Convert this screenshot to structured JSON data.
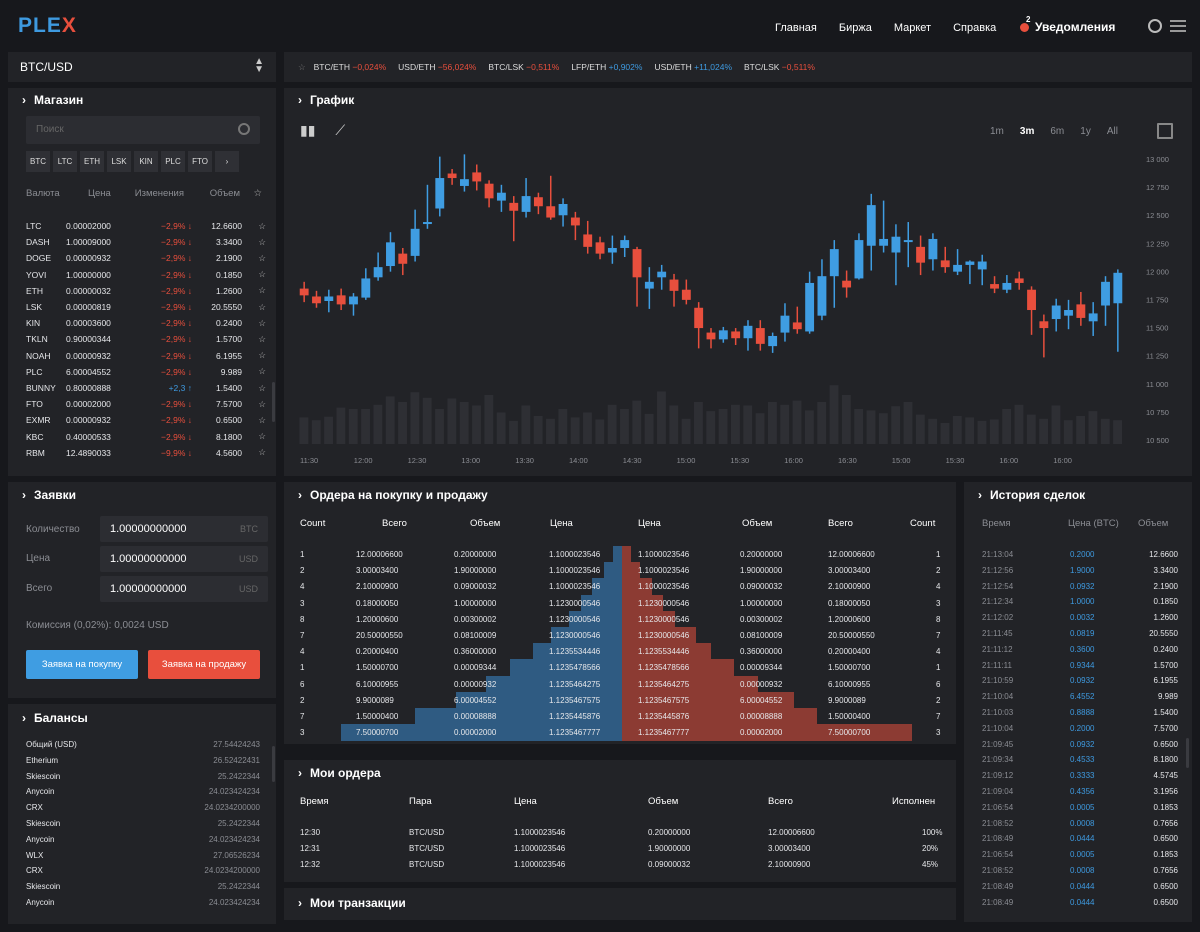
{
  "header": {
    "logo_part1": "PLE",
    "logo_part2": "X",
    "nav": [
      "Главная",
      "Биржа",
      "Маркет",
      "Справка"
    ],
    "notif_count": "2",
    "notif_label": "Уведомления"
  },
  "pair": {
    "value": "BTC/USD"
  },
  "ticker": [
    {
      "pair": "BTC/ETH",
      "change": "−0,024%",
      "dir": "neg"
    },
    {
      "pair": "USD/ETH",
      "change": "−56,024%",
      "dir": "neg"
    },
    {
      "pair": "BTC/LSK",
      "change": "−0,511%",
      "dir": "neg"
    },
    {
      "pair": "LFP/ETH",
      "change": "+0,902%",
      "dir": "pos"
    },
    {
      "pair": "USD/ETH",
      "change": "+11,024%",
      "dir": "pos"
    },
    {
      "pair": "BTC/LSK",
      "change": "−0,511%",
      "dir": "neg"
    }
  ],
  "store": {
    "title": "Магазин",
    "search_placeholder": "Поиск",
    "coins": [
      "BTC",
      "LTC",
      "ETH",
      "LSK",
      "KIN",
      "PLC",
      "FTO",
      "›"
    ],
    "headers": [
      "Валюта",
      "Цена",
      "Изменения",
      "Объем",
      "☆"
    ],
    "rows": [
      {
        "c": "LTC",
        "p": "0.00002000",
        "ch": "−2,9% ↓",
        "d": "neg",
        "v": "12.6600",
        "s": "☆"
      },
      {
        "c": "DASH",
        "p": "1.00009000",
        "ch": "−2,9% ↓",
        "d": "neg",
        "v": "3.3400",
        "s": "☆"
      },
      {
        "c": "DOGE",
        "p": "0.00000932",
        "ch": "−2,9% ↓",
        "d": "neg",
        "v": "2.1900",
        "s": "☆"
      },
      {
        "c": "YOVI",
        "p": "1.00000000",
        "ch": "−2,9% ↓",
        "d": "neg",
        "v": "0.1850",
        "s": "☆"
      },
      {
        "c": "ETH",
        "p": "0.00000032",
        "ch": "−2,9% ↓",
        "d": "neg",
        "v": "1.2600",
        "s": "☆"
      },
      {
        "c": "LSK",
        "p": "0.00000819",
        "ch": "−2,9% ↓",
        "d": "neg",
        "v": "20.5550",
        "s": "☆"
      },
      {
        "c": "KIN",
        "p": "0.00003600",
        "ch": "−2,9% ↓",
        "d": "neg",
        "v": "0.2400",
        "s": "☆"
      },
      {
        "c": "TKLN",
        "p": "0.90000344",
        "ch": "−2,9% ↓",
        "d": "neg",
        "v": "1.5700",
        "s": "☆"
      },
      {
        "c": "NOAH",
        "p": "0.00000932",
        "ch": "−2,9% ↓",
        "d": "neg",
        "v": "6.1955",
        "s": "☆"
      },
      {
        "c": "PLC",
        "p": "6.00004552",
        "ch": "−2,9% ↓",
        "d": "neg",
        "v": "9.989",
        "s": "☆"
      },
      {
        "c": "BUNNY",
        "p": "0.80000888",
        "ch": "+2,3 ↑",
        "d": "pos",
        "v": "1.5400",
        "s": "☆"
      },
      {
        "c": "FTO",
        "p": "0.00002000",
        "ch": "−2,9% ↓",
        "d": "neg",
        "v": "7.5700",
        "s": "☆"
      },
      {
        "c": "EXMR",
        "p": "0.00000932",
        "ch": "−2,9% ↓",
        "d": "neg",
        "v": "0.6500",
        "s": "☆"
      },
      {
        "c": "KBC",
        "p": "0.40000533",
        "ch": "−2,9% ↓",
        "d": "neg",
        "v": "8.1800",
        "s": "☆"
      },
      {
        "c": "RBM",
        "p": "12.4890033",
        "ch": "−9,9% ↓",
        "d": "neg",
        "v": "4.5600",
        "s": "☆"
      }
    ]
  },
  "bidform": {
    "title": "Заявки",
    "qty_label": "Количество",
    "qty_value": "1.00000000000",
    "qty_unit": "BTC",
    "price_label": "Цена",
    "price_value": "1.00000000000",
    "price_unit": "USD",
    "total_label": "Всего",
    "total_value": "1.00000000000",
    "total_unit": "USD",
    "fee": "Комиссия (0,02%): 0,0024 USD",
    "buy_label": "Заявка на покупку",
    "sell_label": "Заявка на продажу"
  },
  "balances": {
    "title": "Балансы",
    "rows": [
      {
        "n": "Общий (USD)",
        "v": "27.54424243"
      },
      {
        "n": "Etherium",
        "v": "26.52422431"
      },
      {
        "n": "Skiescoin",
        "v": "25.2422344"
      },
      {
        "n": "Anycoin",
        "v": "24.023424234"
      },
      {
        "n": "CRX",
        "v": "24.0234200000"
      },
      {
        "n": "Skiescoin",
        "v": "25.2422344"
      },
      {
        "n": "Anycoin",
        "v": "24.023424234"
      },
      {
        "n": "WLX",
        "v": "27.06526234"
      },
      {
        "n": "CRX",
        "v": "24.0234200000"
      },
      {
        "n": "Skiescoin",
        "v": "25.2422344"
      },
      {
        "n": "Anycoin",
        "v": "24.023424234"
      }
    ]
  },
  "chart": {
    "title": "График",
    "timeframes": [
      "1m",
      "3m",
      "6m",
      "1y",
      "All"
    ],
    "active_tf": "3m",
    "colors": {
      "up": "#3f9de2",
      "down": "#e84f3d",
      "volume": "#2e2f34"
    },
    "y_ticks": [
      "13 000",
      "12 750",
      "12 500",
      "12 250",
      "12 000",
      "11 750",
      "11 500",
      "11 250",
      "11 000",
      "10 750",
      "10 500"
    ],
    "x_ticks": [
      "11:30",
      "12:00",
      "12:30",
      "13:00",
      "13:30",
      "14:00",
      "14:30",
      "15:00",
      "15:30",
      "16:00",
      "16:30",
      "15:00",
      "15:30",
      "16:00",
      "16:00"
    ]
  },
  "chart_data": {
    "type": "candlestick",
    "ylim": [
      10500,
      13000
    ],
    "candles": [
      {
        "o": 11860,
        "c": 11800,
        "h": 11920,
        "l": 11740
      },
      {
        "o": 11790,
        "c": 11730,
        "h": 11840,
        "l": 11690
      },
      {
        "o": 11750,
        "c": 11790,
        "h": 11850,
        "l": 11650
      },
      {
        "o": 11800,
        "c": 11720,
        "h": 11860,
        "l": 11670
      },
      {
        "o": 11720,
        "c": 11790,
        "h": 11820,
        "l": 11620
      },
      {
        "o": 11780,
        "c": 11950,
        "h": 12040,
        "l": 11760
      },
      {
        "o": 11960,
        "c": 12050,
        "h": 12180,
        "l": 11930
      },
      {
        "o": 12060,
        "c": 12270,
        "h": 12360,
        "l": 12010
      },
      {
        "o": 12170,
        "c": 12080,
        "h": 12220,
        "l": 11980
      },
      {
        "o": 12150,
        "c": 12390,
        "h": 12560,
        "l": 12100
      },
      {
        "o": 12440,
        "c": 12450,
        "h": 12780,
        "l": 12390
      },
      {
        "o": 12570,
        "c": 12840,
        "h": 13030,
        "l": 12500
      },
      {
        "o": 12880,
        "c": 12840,
        "h": 12920,
        "l": 12780
      },
      {
        "o": 12770,
        "c": 12830,
        "h": 13050,
        "l": 12720
      },
      {
        "o": 12890,
        "c": 12810,
        "h": 12960,
        "l": 12730
      },
      {
        "o": 12790,
        "c": 12660,
        "h": 12820,
        "l": 12580
      },
      {
        "o": 12640,
        "c": 12710,
        "h": 12780,
        "l": 12540
      },
      {
        "o": 12620,
        "c": 12550,
        "h": 12680,
        "l": 12280
      },
      {
        "o": 12540,
        "c": 12680,
        "h": 12840,
        "l": 12490
      },
      {
        "o": 12670,
        "c": 12590,
        "h": 12710,
        "l": 12520
      },
      {
        "o": 12590,
        "c": 12490,
        "h": 12860,
        "l": 12470
      },
      {
        "o": 12510,
        "c": 12610,
        "h": 12660,
        "l": 12410
      },
      {
        "o": 12490,
        "c": 12420,
        "h": 12540,
        "l": 12290
      },
      {
        "o": 12340,
        "c": 12230,
        "h": 12460,
        "l": 12170
      },
      {
        "o": 12270,
        "c": 12170,
        "h": 12320,
        "l": 12120
      },
      {
        "o": 12180,
        "c": 12220,
        "h": 12330,
        "l": 12080
      },
      {
        "o": 12220,
        "c": 12290,
        "h": 12330,
        "l": 12140
      },
      {
        "o": 12210,
        "c": 11960,
        "h": 12230,
        "l": 11700
      },
      {
        "o": 11860,
        "c": 11920,
        "h": 12050,
        "l": 11680
      },
      {
        "o": 11960,
        "c": 12010,
        "h": 12070,
        "l": 11850
      },
      {
        "o": 11940,
        "c": 11840,
        "h": 11990,
        "l": 11700
      },
      {
        "o": 11850,
        "c": 11760,
        "h": 11940,
        "l": 11720
      },
      {
        "o": 11690,
        "c": 11510,
        "h": 11740,
        "l": 11330
      },
      {
        "o": 11470,
        "c": 11410,
        "h": 11510,
        "l": 11330
      },
      {
        "o": 11410,
        "c": 11490,
        "h": 11520,
        "l": 11380
      },
      {
        "o": 11480,
        "c": 11420,
        "h": 11510,
        "l": 11360
      },
      {
        "o": 11420,
        "c": 11530,
        "h": 11580,
        "l": 11310
      },
      {
        "o": 11510,
        "c": 11370,
        "h": 11580,
        "l": 11310
      },
      {
        "o": 11350,
        "c": 11440,
        "h": 11470,
        "l": 11290
      },
      {
        "o": 11470,
        "c": 11620,
        "h": 11730,
        "l": 11390
      },
      {
        "o": 11560,
        "c": 11500,
        "h": 11700,
        "l": 11460
      },
      {
        "o": 11480,
        "c": 11910,
        "h": 12010,
        "l": 11460
      },
      {
        "o": 11620,
        "c": 11970,
        "h": 12120,
        "l": 11580
      },
      {
        "o": 11970,
        "c": 12210,
        "h": 12290,
        "l": 11690
      },
      {
        "o": 11930,
        "c": 11870,
        "h": 12020,
        "l": 11780
      },
      {
        "o": 11950,
        "c": 12290,
        "h": 12350,
        "l": 11940
      },
      {
        "o": 12240,
        "c": 12600,
        "h": 12700,
        "l": 12020
      },
      {
        "o": 12240,
        "c": 12300,
        "h": 12640,
        "l": 12180
      },
      {
        "o": 12180,
        "c": 12320,
        "h": 12430,
        "l": 11890
      },
      {
        "o": 12290,
        "c": 12290,
        "h": 12450,
        "l": 12050
      },
      {
        "o": 12230,
        "c": 12090,
        "h": 12330,
        "l": 11980
      },
      {
        "o": 12120,
        "c": 12300,
        "h": 12350,
        "l": 12020
      },
      {
        "o": 12110,
        "c": 12050,
        "h": 12230,
        "l": 12000
      },
      {
        "o": 12010,
        "c": 12070,
        "h": 12210,
        "l": 11980
      },
      {
        "o": 12070,
        "c": 12100,
        "h": 12110,
        "l": 11900
      },
      {
        "o": 12030,
        "c": 12100,
        "h": 12160,
        "l": 11890
      },
      {
        "o": 11900,
        "c": 11860,
        "h": 11970,
        "l": 11820
      },
      {
        "o": 11850,
        "c": 11910,
        "h": 11980,
        "l": 11820
      },
      {
        "o": 11950,
        "c": 11910,
        "h": 12010,
        "l": 11850
      },
      {
        "o": 11850,
        "c": 11670,
        "h": 11880,
        "l": 11450
      },
      {
        "o": 11570,
        "c": 11510,
        "h": 11630,
        "l": 11250
      },
      {
        "o": 11590,
        "c": 11710,
        "h": 11770,
        "l": 11480
      },
      {
        "o": 11620,
        "c": 11670,
        "h": 11760,
        "l": 11500
      },
      {
        "o": 11720,
        "c": 11600,
        "h": 11830,
        "l": 11530
      },
      {
        "o": 11570,
        "c": 11640,
        "h": 11740,
        "l": 11440
      },
      {
        "o": 11710,
        "c": 11920,
        "h": 11970,
        "l": 11530
      },
      {
        "o": 11730,
        "c": 12000,
        "h": 12030,
        "l": 11300
      }
    ],
    "volume": [
      0.38,
      0.34,
      0.39,
      0.52,
      0.5,
      0.5,
      0.56,
      0.68,
      0.6,
      0.74,
      0.66,
      0.5,
      0.65,
      0.6,
      0.55,
      0.7,
      0.45,
      0.33,
      0.55,
      0.4,
      0.36,
      0.5,
      0.38,
      0.45,
      0.35,
      0.56,
      0.5,
      0.62,
      0.43,
      0.75,
      0.55,
      0.36,
      0.6,
      0.47,
      0.5,
      0.56,
      0.55,
      0.44,
      0.6,
      0.56,
      0.62,
      0.48,
      0.6,
      0.84,
      0.7,
      0.5,
      0.48,
      0.44,
      0.54,
      0.6,
      0.42,
      0.36,
      0.3,
      0.4,
      0.38,
      0.33,
      0.35,
      0.5,
      0.56,
      0.42,
      0.36,
      0.55,
      0.34,
      0.4,
      0.47,
      0.36,
      0.34
    ]
  },
  "book": {
    "title": "Ордера на покупку и продажу",
    "headers_left": [
      "Count",
      "Всего",
      "Объем",
      "Цена"
    ],
    "headers_right": [
      "Цена",
      "Объем",
      "Всего",
      "Count"
    ],
    "bids": [
      [
        "1",
        "12.00006600",
        "0.20000000",
        "1.1000023546"
      ],
      [
        "2",
        "3.00003400",
        "1.90000000",
        "1.1000023546"
      ],
      [
        "4",
        "2.10000900",
        "0.09000032",
        "1.1000023546"
      ],
      [
        "3",
        "0.18000050",
        "1.00000000",
        "1.1230000546"
      ],
      [
        "8",
        "1.20000600",
        "0.00300002",
        "1.1230000546"
      ],
      [
        "7",
        "20.50000550",
        "0.08100009",
        "1.1230000546"
      ],
      [
        "4",
        "0.20000400",
        "0.36000000",
        "1.1235534446"
      ],
      [
        "1",
        "1.50000700",
        "0.00009344",
        "1.1235478566"
      ],
      [
        "6",
        "6.10000955",
        "0.00000932",
        "1.1235464275"
      ],
      [
        "2",
        "9.9000089",
        "6.00004552",
        "1.1235467575"
      ],
      [
        "7",
        "1.50000400",
        "0.00008888",
        "1.1235445876"
      ],
      [
        "3",
        "7.50000700",
        "0.00002000",
        "1.1235467777"
      ]
    ],
    "asks": [
      [
        "1.1000023546",
        "0.20000000",
        "12.00006600",
        "1"
      ],
      [
        "1.1000023546",
        "1.90000000",
        "3.00003400",
        "2"
      ],
      [
        "1.1000023546",
        "0.09000032",
        "2.10000900",
        "4"
      ],
      [
        "1.1230000546",
        "1.00000000",
        "0.18000050",
        "3"
      ],
      [
        "1.1230000546",
        "0.00300002",
        "1.20000600",
        "8"
      ],
      [
        "1.1230000546",
        "0.08100009",
        "20.50000550",
        "7"
      ],
      [
        "1.1235534446",
        "0.36000000",
        "0.20000400",
        "4"
      ],
      [
        "1.1235478566",
        "0.00009344",
        "1.50000700",
        "1"
      ],
      [
        "1.1235464275",
        "0.00000932",
        "6.10000955",
        "6"
      ],
      [
        "1.1235467575",
        "6.00004552",
        "9.9000089",
        "2"
      ],
      [
        "1.1235445876",
        "0.00008888",
        "1.50000400",
        "7"
      ],
      [
        "1.1235467777",
        "0.00002000",
        "7.50000700",
        "3"
      ]
    ],
    "bid_depth": [
      0.03,
      0.06,
      0.1,
      0.14,
      0.18,
      0.24,
      0.3,
      0.38,
      0.46,
      0.56,
      0.7,
      0.95
    ],
    "ask_depth": [
      0.03,
      0.06,
      0.1,
      0.14,
      0.18,
      0.25,
      0.3,
      0.38,
      0.46,
      0.58,
      0.66,
      0.98
    ]
  },
  "myorders": {
    "title": "Мои ордера",
    "headers": [
      "Время",
      "Пара",
      "Цена",
      "Объем",
      "Всего",
      "Исполнен"
    ],
    "rows": [
      [
        "12:30",
        "BTC/USD",
        "1.1000023546",
        "0.20000000",
        "12.00006600",
        "100%"
      ],
      [
        "12:31",
        "BTC/USD",
        "1.1000023546",
        "1.90000000",
        "3.00003400",
        "20%"
      ],
      [
        "12:32",
        "BTC/USD",
        "1.1000023546",
        "0.09000032",
        "2.10000900",
        "45%"
      ]
    ]
  },
  "mytx": {
    "title": "Мои транзакции"
  },
  "history": {
    "title": "История сделок",
    "headers": [
      "Время",
      "Цена (BTC)",
      "Объем"
    ],
    "rows": [
      [
        "21:13:04",
        "0.2000",
        "12.6600"
      ],
      [
        "21:12:56",
        "1.9000",
        "3.3400"
      ],
      [
        "21:12:54",
        "0.0932",
        "2.1900"
      ],
      [
        "21:12:34",
        "1.0000",
        "0.1850"
      ],
      [
        "21:12:02",
        "0.0032",
        "1.2600"
      ],
      [
        "21:11:45",
        "0.0819",
        "20.5550"
      ],
      [
        "21:11:12",
        "0.3600",
        "0.2400"
      ],
      [
        "21:11:11",
        "0.9344",
        "1.5700"
      ],
      [
        "21:10:59",
        "0.0932",
        "6.1955"
      ],
      [
        "21:10:04",
        "6.4552",
        "9.989"
      ],
      [
        "21:10:03",
        "0.8888",
        "1.5400"
      ],
      [
        "21:10:04",
        "0.2000",
        "7.5700"
      ],
      [
        "21:09:45",
        "0.0932",
        "0.6500"
      ],
      [
        "21:09:34",
        "0.4533",
        "8.1800"
      ],
      [
        "21:09:12",
        "0.3333",
        "4.5745"
      ],
      [
        "21:09:04",
        "0.4356",
        "3.1956"
      ],
      [
        "21:06:54",
        "0.0005",
        "0.1853"
      ],
      [
        "21:08:52",
        "0.0008",
        "0.7656"
      ],
      [
        "21:08:49",
        "0.0444",
        "0.6500"
      ],
      [
        "21:06:54",
        "0.0005",
        "0.1853"
      ],
      [
        "21:08:52",
        "0.0008",
        "0.7656"
      ],
      [
        "21:08:49",
        "0.0444",
        "0.6500"
      ],
      [
        "21:08:49",
        "0.0444",
        "0.6500"
      ]
    ]
  }
}
